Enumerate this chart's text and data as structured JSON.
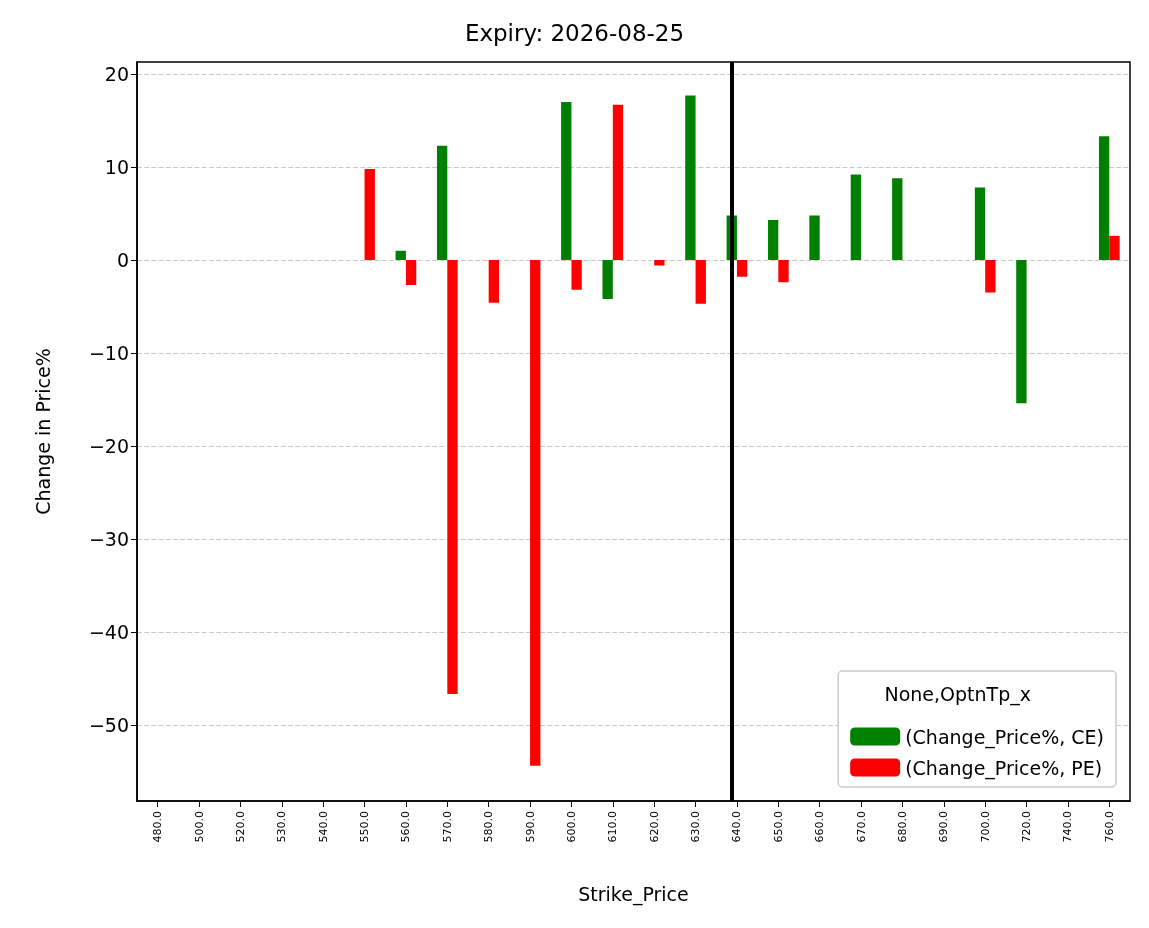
{
  "chart_data": {
    "type": "bar",
    "title": "Expiry: 2026-08-25",
    "xlabel": "Strike_Price",
    "ylabel": "Change in Price%",
    "legend_title": "None,OptnTp_x",
    "categories": [
      "480.0",
      "500.0",
      "520.0",
      "530.0",
      "540.0",
      "550.0",
      "560.0",
      "570.0",
      "580.0",
      "590.0",
      "600.0",
      "610.0",
      "620.0",
      "630.0",
      "640.0",
      "650.0",
      "660.0",
      "670.0",
      "680.0",
      "690.0",
      "700.0",
      "720.0",
      "740.0",
      "760.0"
    ],
    "series": [
      {
        "name": "(Change_Price%, CE)",
        "color": "#008000",
        "values": [
          null,
          null,
          null,
          null,
          null,
          null,
          1.0,
          12.3,
          null,
          null,
          17.0,
          -4.2,
          null,
          17.7,
          4.8,
          4.3,
          4.8,
          9.2,
          8.8,
          null,
          7.8,
          -15.4,
          null,
          13.3
        ]
      },
      {
        "name": "(Change_Price%, PE)",
        "color": "#ff0000",
        "values": [
          null,
          null,
          null,
          null,
          null,
          9.8,
          -2.7,
          -46.7,
          -4.6,
          -54.4,
          -3.2,
          16.7,
          -0.6,
          -4.7,
          -1.8,
          -2.4,
          null,
          null,
          null,
          null,
          -3.5,
          null,
          null,
          2.6
        ]
      }
    ],
    "ylim": [
      -58.2,
      21.3
    ],
    "yticks": [
      {
        "value": -50,
        "label": "−50"
      },
      {
        "value": -40,
        "label": "−40"
      },
      {
        "value": -30,
        "label": "−30"
      },
      {
        "value": -20,
        "label": "−20"
      },
      {
        "value": -10,
        "label": "−10"
      },
      0,
      10,
      20
    ],
    "ref_lines": [
      {
        "axis": "x",
        "value": "640.0",
        "color": "#000000"
      }
    ],
    "grid": "y",
    "legend": "bottom right"
  }
}
